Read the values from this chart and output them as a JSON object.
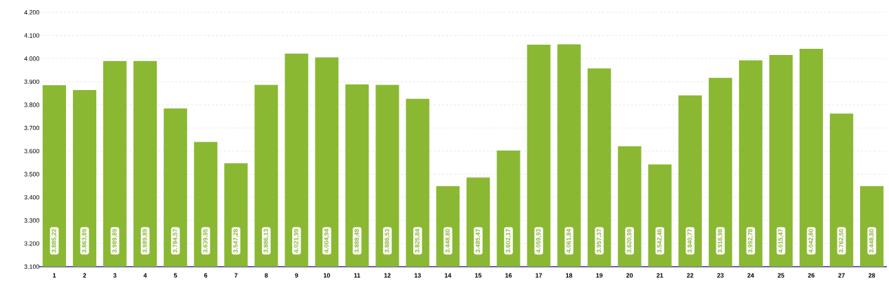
{
  "chart_data": {
    "type": "bar",
    "categories": [
      "1",
      "2",
      "3",
      "4",
      "5",
      "6",
      "7",
      "8",
      "9",
      "10",
      "11",
      "12",
      "13",
      "14",
      "15",
      "16",
      "17",
      "18",
      "19",
      "20",
      "21",
      "22",
      "23",
      "24",
      "25",
      "26",
      "27",
      "28"
    ],
    "values": [
      3885.22,
      3863.89,
      3989.89,
      3989.89,
      3784.57,
      3639.95,
      3547.28,
      3886.13,
      4021.99,
      4004.94,
      3888.48,
      3886.53,
      3825.84,
      3448.8,
      3485.47,
      3602.17,
      4059.93,
      4061.84,
      3957.37,
      3620.99,
      3542.46,
      3840.77,
      3916.98,
      3992.78,
      4015.47,
      4042.8,
      3762.5,
      3448.8
    ],
    "value_labels": [
      "3.885,22",
      "3.863,89",
      "3.989,89",
      "3.989,89",
      "3.784,57",
      "3.639,95",
      "3.547,28",
      "3.886,13",
      "4.021,99",
      "4.004,94",
      "3.888,48",
      "3.886,53",
      "3.825,84",
      "3.448,80",
      "3.485,47",
      "3.602,17",
      "4.059,93",
      "4.061,84",
      "3.957,37",
      "3.620,99",
      "3.542,46",
      "3.840,77",
      "3.916,98",
      "3.992,78",
      "4.015,47",
      "4.042,80",
      "3.762,50",
      "3.448,80"
    ],
    "color": "#8ab833",
    "ylim": [
      3100,
      4200
    ],
    "yticks": [
      {
        "value": 3100,
        "label": "3.100"
      },
      {
        "value": 3200,
        "label": "3.200"
      },
      {
        "value": 3300,
        "label": "3.300"
      },
      {
        "value": 3400,
        "label": "3.400"
      },
      {
        "value": 3500,
        "label": "3.500"
      },
      {
        "value": 3600,
        "label": "3.600"
      },
      {
        "value": 3700,
        "label": "3.700"
      },
      {
        "value": 3800,
        "label": "3.800"
      },
      {
        "value": 3900,
        "label": "3.900"
      },
      {
        "value": 4000,
        "label": "4.000"
      },
      {
        "value": 4100,
        "label": "4.100"
      },
      {
        "value": 4200,
        "label": "4.200"
      }
    ],
    "grid": "y"
  }
}
